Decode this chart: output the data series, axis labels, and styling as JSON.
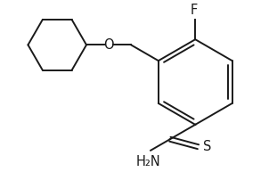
{
  "background_color": "#ffffff",
  "line_color": "#1a1a1a",
  "text_color": "#1a1a1a",
  "label_F": "F",
  "label_O": "O",
  "label_S": "S",
  "label_NH2": "H₂N",
  "figsize": [
    3.11,
    1.93
  ],
  "dpi": 100,
  "line_width": 1.4,
  "font_size": 10.5
}
